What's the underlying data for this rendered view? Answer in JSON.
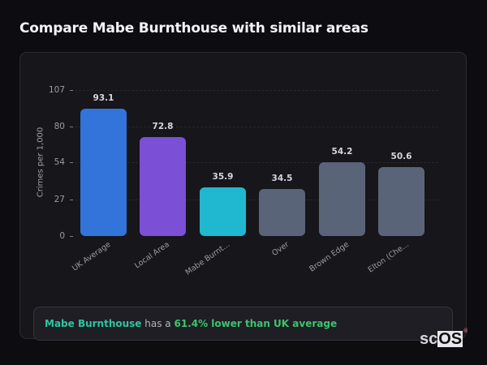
{
  "page": {
    "title": "Compare Mabe Burnthouse with similar areas"
  },
  "chart_data": {
    "type": "bar",
    "title": "Compare Mabe Burnthouse with similar areas",
    "xlabel": "",
    "ylabel": "Crimes per 1,000",
    "ylim": [
      0,
      107
    ],
    "yticks": [
      0,
      27,
      54,
      80,
      107
    ],
    "grid": true,
    "legend": null,
    "categories": [
      "UK Average",
      "Local Area",
      "Mabe Burnt...",
      "Over",
      "Brown Edge",
      "Elton (Che..."
    ],
    "values": [
      93.1,
      72.8,
      35.9,
      34.5,
      54.2,
      50.6
    ],
    "value_labels": [
      "93.1",
      "72.8",
      "35.9",
      "34.5",
      "54.2",
      "50.6"
    ],
    "colors": [
      "#3274d9",
      "#7b4fd6",
      "#20b8d0",
      "#5a6478",
      "#5a6478",
      "#5a6478"
    ]
  },
  "summary": {
    "area_name": "Mabe Burnthouse",
    "connector": " has a ",
    "stat": "61.4% lower than UK average"
  },
  "logo": {
    "sc": "sc",
    "os": "OS",
    "reg": "®"
  }
}
